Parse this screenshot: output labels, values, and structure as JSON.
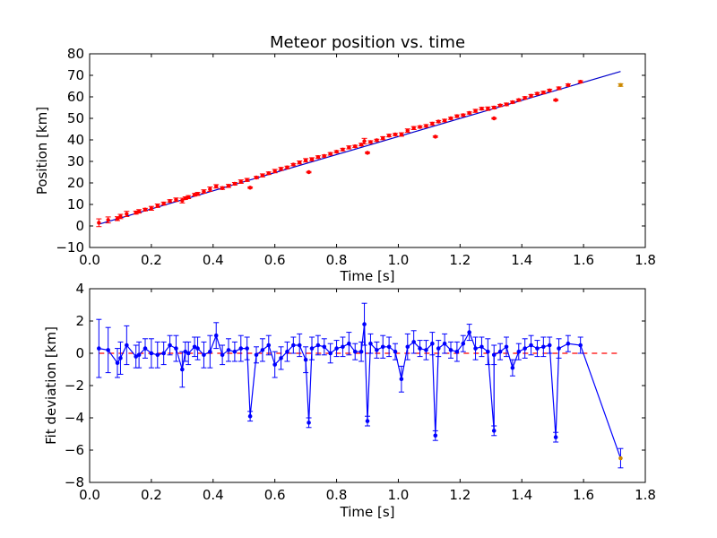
{
  "chart_data": [
    {
      "type": "scatter",
      "title": "Meteor position vs. time",
      "xlabel": "Time [s]",
      "ylabel": "Position [km]",
      "xlim": [
        0.0,
        1.8
      ],
      "ylim": [
        -10,
        80
      ],
      "xticks": [
        "0.0",
        "0.2",
        "0.4",
        "0.6",
        "0.8",
        "1.0",
        "1.2",
        "1.4",
        "1.6",
        "1.8"
      ],
      "yticks": [
        "−10",
        "0",
        "10",
        "20",
        "30",
        "40",
        "50",
        "60",
        "70",
        "80"
      ],
      "grid": false,
      "colors": {
        "points": "#ff0000",
        "outlier": "#cc8800",
        "fit": "#0000cc"
      },
      "fit_line": {
        "x": [
          0.03,
          1.72
        ],
        "y": [
          0.8,
          71.8
        ]
      },
      "x": [
        0.03,
        0.06,
        0.09,
        0.1,
        0.12,
        0.15,
        0.16,
        0.18,
        0.2,
        0.22,
        0.24,
        0.26,
        0.28,
        0.3,
        0.31,
        0.32,
        0.34,
        0.35,
        0.37,
        0.39,
        0.41,
        0.43,
        0.45,
        0.47,
        0.49,
        0.51,
        0.52,
        0.54,
        0.56,
        0.58,
        0.6,
        0.62,
        0.64,
        0.66,
        0.68,
        0.7,
        0.71,
        0.72,
        0.74,
        0.76,
        0.78,
        0.8,
        0.82,
        0.84,
        0.86,
        0.88,
        0.89,
        0.9,
        0.91,
        0.93,
        0.95,
        0.97,
        0.99,
        1.01,
        1.03,
        1.05,
        1.07,
        1.09,
        1.11,
        1.12,
        1.13,
        1.15,
        1.17,
        1.19,
        1.21,
        1.23,
        1.25,
        1.27,
        1.29,
        1.31,
        1.31,
        1.33,
        1.35,
        1.37,
        1.39,
        1.41,
        1.43,
        1.45,
        1.47,
        1.49,
        1.51,
        1.52,
        1.55,
        1.59,
        1.72
      ],
      "y": [
        1.5,
        2.8,
        3.4,
        4.4,
        5.6,
        6.2,
        6.8,
        7.6,
        8.2,
        9.4,
        10.4,
        11.6,
        12.2,
        11.8,
        12.9,
        13.4,
        14.5,
        14.9,
        16.0,
        17.1,
        18.4,
        17.6,
        18.6,
        19.6,
        20.6,
        21.4,
        17.8,
        22.5,
        23.5,
        24.5,
        25.5,
        26.5,
        27.2,
        28.5,
        29.5,
        30.5,
        25.0,
        31.0,
        32.0,
        32.5,
        33.5,
        34.5,
        35.5,
        36.5,
        37.0,
        37.8,
        39.4,
        34.0,
        39.0,
        39.8,
        40.8,
        42.0,
        42.5,
        42.5,
        44.3,
        45.5,
        46.0,
        46.5,
        47.5,
        41.5,
        48.5,
        49.0,
        50.0,
        51.0,
        51.5,
        52.5,
        53.5,
        54.5,
        54.5,
        50.0,
        55.0,
        56.0,
        56.5,
        57.5,
        58.5,
        59.5,
        60.5,
        61.5,
        62.0,
        63.0,
        58.5,
        64.0,
        65.5,
        67.0,
        65.5
      ],
      "err": [
        1.8,
        1.4,
        0.9,
        1.0,
        1.2,
        0.7,
        0.8,
        0.6,
        0.9,
        0.8,
        0.7,
        0.6,
        0.8,
        1.1,
        0.6,
        0.7,
        0.6,
        0.7,
        0.8,
        1.0,
        0.8,
        0.6,
        0.7,
        0.6,
        0.8,
        0.7,
        0.3,
        0.5,
        0.7,
        0.6,
        0.8,
        0.7,
        0.6,
        0.5,
        0.7,
        0.8,
        0.3,
        0.7,
        0.6,
        0.5,
        0.6,
        0.5,
        0.6,
        0.7,
        0.5,
        0.6,
        1.3,
        0.3,
        0.6,
        0.5,
        0.7,
        0.6,
        0.5,
        0.8,
        0.8,
        0.7,
        0.5,
        0.6,
        0.7,
        0.3,
        0.5,
        0.6,
        0.5,
        0.6,
        0.5,
        0.5,
        0.7,
        0.6,
        0.8,
        0.3,
        0.6,
        0.5,
        0.6,
        0.5,
        0.5,
        0.6,
        0.6,
        0.5,
        0.6,
        0.5,
        0.3,
        0.6,
        0.5,
        0.5,
        0.6
      ]
    },
    {
      "type": "line",
      "title": "",
      "xlabel": "Time [s]",
      "ylabel": "Fit deviation [km]",
      "xlim": [
        0.0,
        1.8
      ],
      "ylim": [
        -8,
        4
      ],
      "xticks": [
        "0.0",
        "0.2",
        "0.4",
        "0.6",
        "0.8",
        "1.0",
        "1.2",
        "1.4",
        "1.6",
        "1.8"
      ],
      "yticks": [
        "−8",
        "−6",
        "−4",
        "−2",
        "0",
        "2",
        "4"
      ],
      "grid": false,
      "colors": {
        "series": "#0000ff",
        "outlier": "#cc8800",
        "zero_line": "#ff0000"
      },
      "zero_line": {
        "x": [
          0.03,
          1.72
        ],
        "y": [
          0,
          0
        ]
      },
      "x": [
        0.03,
        0.06,
        0.09,
        0.1,
        0.12,
        0.15,
        0.16,
        0.18,
        0.2,
        0.22,
        0.24,
        0.26,
        0.28,
        0.3,
        0.31,
        0.32,
        0.34,
        0.35,
        0.37,
        0.39,
        0.41,
        0.43,
        0.45,
        0.47,
        0.49,
        0.51,
        0.52,
        0.54,
        0.56,
        0.58,
        0.6,
        0.62,
        0.64,
        0.66,
        0.68,
        0.7,
        0.71,
        0.72,
        0.74,
        0.76,
        0.78,
        0.8,
        0.82,
        0.84,
        0.86,
        0.88,
        0.89,
        0.9,
        0.91,
        0.93,
        0.95,
        0.97,
        0.99,
        1.01,
        1.03,
        1.05,
        1.07,
        1.09,
        1.11,
        1.12,
        1.13,
        1.15,
        1.17,
        1.19,
        1.21,
        1.23,
        1.25,
        1.27,
        1.29,
        1.31,
        1.31,
        1.33,
        1.35,
        1.37,
        1.39,
        1.41,
        1.43,
        1.45,
        1.47,
        1.49,
        1.51,
        1.52,
        1.55,
        1.59,
        1.72
      ],
      "values": [
        0.3,
        0.2,
        -0.6,
        -0.3,
        0.5,
        -0.2,
        -0.1,
        0.3,
        0.0,
        -0.1,
        0.0,
        0.5,
        0.3,
        -1.0,
        0.1,
        0.0,
        0.4,
        0.3,
        -0.1,
        0.1,
        1.1,
        -0.1,
        0.2,
        0.1,
        0.3,
        0.3,
        -3.9,
        -0.1,
        0.2,
        0.5,
        -0.7,
        -0.3,
        0.1,
        0.5,
        0.5,
        -0.4,
        -4.3,
        0.3,
        0.5,
        0.4,
        0.0,
        0.3,
        0.4,
        0.6,
        0.1,
        0.1,
        1.8,
        -4.2,
        0.6,
        0.2,
        0.4,
        0.4,
        0.1,
        -1.6,
        0.4,
        0.7,
        0.3,
        0.2,
        0.6,
        -5.1,
        0.3,
        0.6,
        0.2,
        0.1,
        0.6,
        1.3,
        0.3,
        0.4,
        0.1,
        -4.8,
        -0.1,
        0.1,
        0.4,
        -0.9,
        0.1,
        0.3,
        0.5,
        0.3,
        0.4,
        0.5,
        -5.2,
        0.3,
        0.6,
        0.5,
        -6.5
      ],
      "err": [
        1.8,
        1.4,
        0.9,
        1.0,
        1.2,
        0.7,
        0.8,
        0.6,
        0.9,
        0.8,
        0.7,
        0.6,
        0.8,
        1.1,
        0.6,
        0.7,
        0.6,
        0.7,
        0.8,
        1.0,
        0.8,
        0.6,
        0.7,
        0.6,
        0.8,
        0.7,
        0.3,
        0.5,
        0.7,
        0.6,
        0.8,
        0.7,
        0.6,
        0.5,
        0.7,
        0.8,
        0.3,
        0.7,
        0.6,
        0.5,
        0.6,
        0.5,
        0.6,
        0.7,
        0.5,
        0.6,
        1.3,
        0.3,
        0.6,
        0.5,
        0.7,
        0.6,
        0.5,
        0.8,
        0.8,
        0.7,
        0.5,
        0.6,
        0.7,
        0.3,
        0.5,
        0.6,
        0.5,
        0.6,
        0.5,
        0.5,
        0.7,
        0.6,
        0.8,
        0.3,
        0.6,
        0.5,
        0.6,
        0.5,
        0.5,
        0.6,
        0.6,
        0.5,
        0.6,
        0.5,
        0.3,
        0.6,
        0.5,
        0.5,
        0.6
      ]
    }
  ]
}
